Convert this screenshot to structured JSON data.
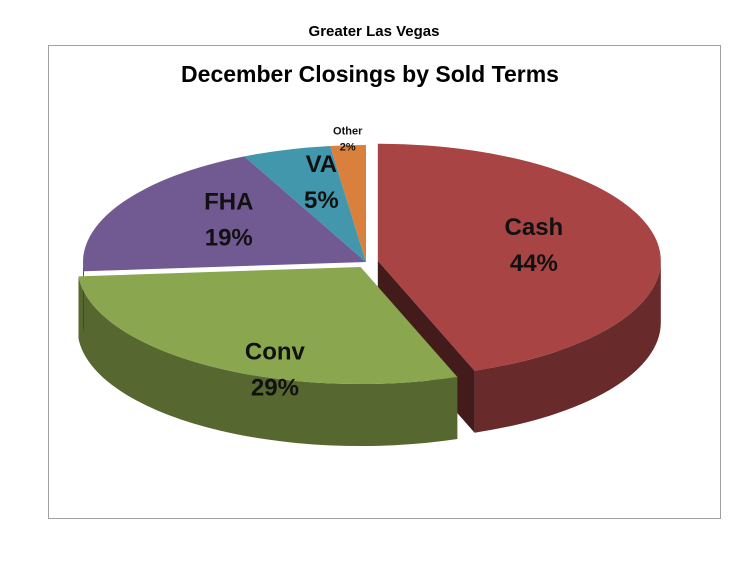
{
  "chart_data": {
    "type": "pie",
    "subtitle": "Greater Las Vegas",
    "title": "December Closings by Sold Terms",
    "categories": [
      "Cash",
      "Conv",
      "FHA",
      "VA",
      "Other"
    ],
    "values": [
      44,
      29,
      19,
      5,
      2
    ],
    "value_labels": [
      "44%",
      "29%",
      "19%",
      "5%",
      "2%"
    ],
    "colors": [
      "#a84444",
      "#8aa64e",
      "#715a92",
      "#4297ad",
      "#d9803c"
    ]
  }
}
